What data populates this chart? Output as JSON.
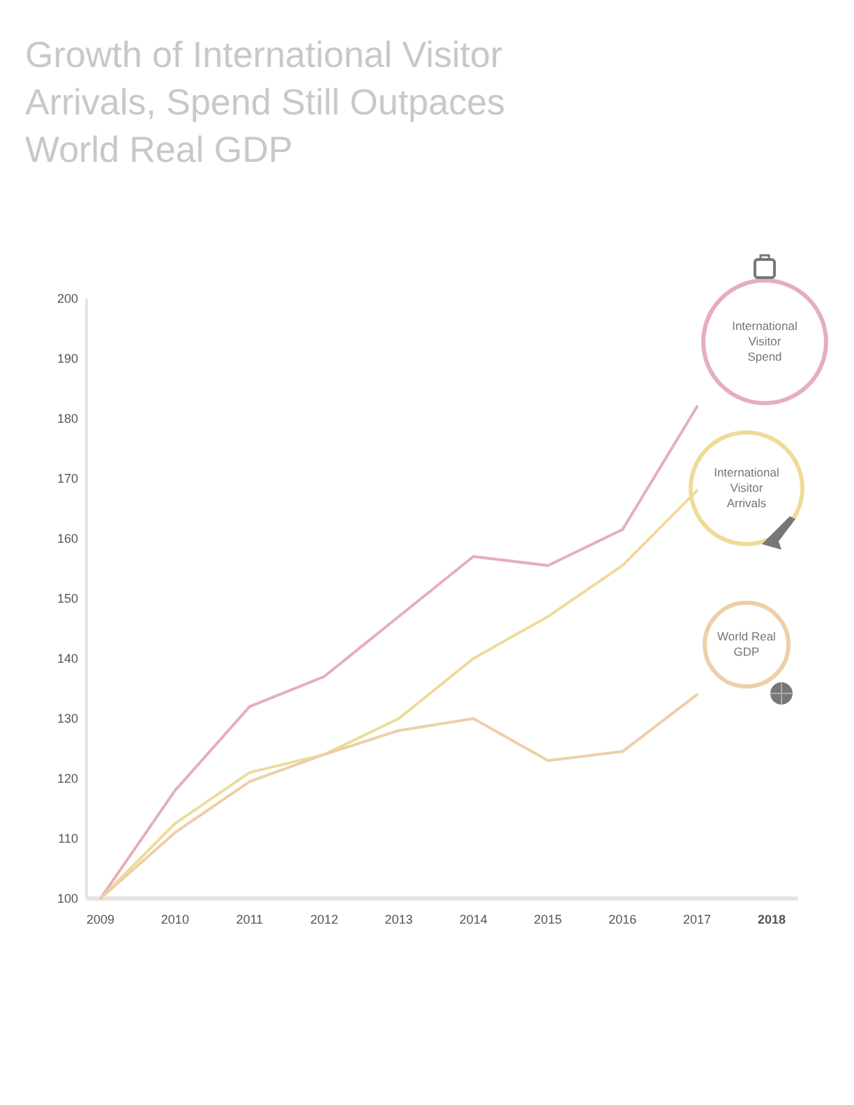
{
  "chart_data": {
    "type": "line",
    "title": "Growth of International Visitor Arrivals, Spend Still Outpaces World Real GDP",
    "categories": [
      "2009",
      "2010",
      "2011",
      "2012",
      "2013",
      "2014",
      "2015",
      "2016",
      "2017",
      "2018"
    ],
    "series": [
      {
        "name": "International Visitor Spend",
        "color": "#e6aebd",
        "values": [
          100,
          118,
          132,
          137,
          147,
          157,
          155.5,
          161.5,
          182,
          null
        ]
      },
      {
        "name": "International Visitor Arrivals",
        "color": "#eddc98",
        "values": [
          100,
          112.5,
          121,
          124,
          130,
          140,
          147,
          155.5,
          168,
          null
        ]
      },
      {
        "name": "World Real GDP",
        "color": "#edcfa8",
        "values": [
          100,
          111,
          119.5,
          124,
          128,
          130,
          123,
          124.5,
          134,
          null
        ]
      }
    ],
    "ylim": [
      100,
      200
    ],
    "yticks": [
      100,
      110,
      120,
      130,
      140,
      150,
      160,
      170,
      180,
      190,
      200
    ],
    "grid": false,
    "legend": "right",
    "marker": "none",
    "line_style": "solid"
  }
}
